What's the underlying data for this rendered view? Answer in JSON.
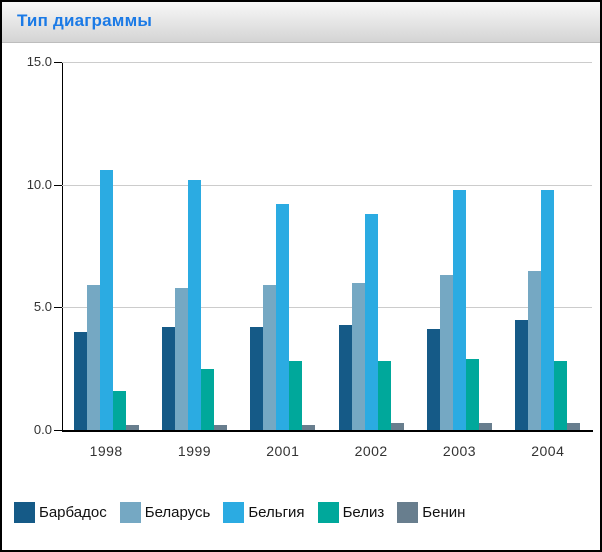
{
  "header": {
    "title": "Тип диаграммы"
  },
  "chart_data": {
    "type": "bar",
    "title": "Тип диаграммы",
    "categories": [
      "1998",
      "1999",
      "2001",
      "2002",
      "2003",
      "2004"
    ],
    "series": [
      {
        "key": "barbados",
        "name": "Барбадос",
        "color": "#155a87",
        "values": [
          4.0,
          4.2,
          4.2,
          4.3,
          4.1,
          4.5
        ]
      },
      {
        "key": "belarus",
        "name": "Беларусь",
        "color": "#75a8c3",
        "values": [
          5.9,
          5.8,
          5.9,
          6.0,
          6.3,
          6.5
        ]
      },
      {
        "key": "belgium",
        "name": "Бельгия",
        "color": "#2babe2",
        "values": [
          10.6,
          10.2,
          9.2,
          8.8,
          9.8,
          9.8
        ]
      },
      {
        "key": "belize",
        "name": "Белиз",
        "color": "#00a89b",
        "values": [
          1.6,
          2.5,
          2.8,
          2.8,
          2.9,
          2.8
        ]
      },
      {
        "key": "benin",
        "name": "Бенин",
        "color": "#687e8e",
        "values": [
          0.2,
          0.2,
          0.2,
          0.3,
          0.3,
          0.3
        ]
      }
    ],
    "ylim": [
      0,
      15
    ],
    "y_ticks": [
      {
        "value": 0,
        "label": "0.0"
      },
      {
        "value": 5,
        "label": "5.0"
      },
      {
        "value": 10,
        "label": "10.0"
      },
      {
        "value": 15,
        "label": "15.0"
      }
    ],
    "xlabel": "",
    "ylabel": "",
    "grid": true,
    "legend_position": "bottom",
    "colors": {
      "title_text": "#1b7ae6",
      "gridline": "#cccccc",
      "axis": "#000000",
      "header_gradient_top": "#f8f8f8",
      "header_gradient_bottom": "#d4d4d4"
    }
  }
}
